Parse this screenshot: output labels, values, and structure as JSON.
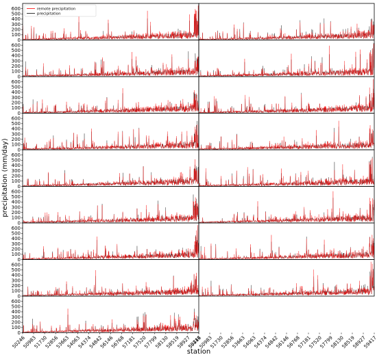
{
  "chart_data": {
    "type": "line",
    "layout": "grid 9 rows x 2 columns; the bottom row has a single panel in the left column",
    "title": "",
    "xlabel": "station",
    "ylabel": "precipitation (mm/day)",
    "ylim": [
      0,
      700
    ],
    "yticks": [
      0,
      100,
      200,
      300,
      400,
      500,
      600
    ],
    "x_tick_labels": [
      "50246",
      "50983",
      "51730",
      "52856",
      "53663",
      "54063",
      "54374",
      "54842",
      "56146",
      "56768",
      "57181",
      "57520",
      "57799",
      "58130",
      "58519",
      "58927",
      "59417"
    ],
    "grid": false,
    "legend": {
      "placement": "top-left of first panel",
      "entries": [
        {
          "label": "remote precipitation",
          "color": "#ff0000"
        },
        {
          "label": "precipitation",
          "color": "#000000"
        }
      ]
    },
    "series": [
      {
        "name": "remote precipitation",
        "color": "#ff0000"
      },
      {
        "name": "precipitation",
        "color": "#000000"
      }
    ],
    "n_panels": 17,
    "points_per_panel": 900,
    "profile_note": "daily values per station; typical 20-150 mm/day, rising toward the right end of each panel, with peaks up to about 600 mm/day"
  }
}
